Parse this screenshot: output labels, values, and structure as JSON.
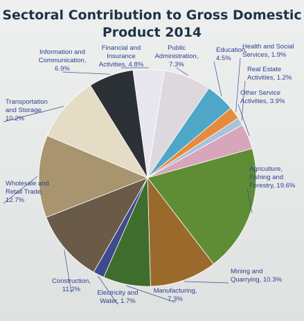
{
  "chart_data": {
    "type": "pie",
    "title_line1": "Sectoral Contribution to Gross Domestic",
    "title_line2": "Product 2014",
    "unit": "%",
    "slices": [
      {
        "label": "Public Administration, 7.3%",
        "value": 7.3,
        "color": "#ddd7de"
      },
      {
        "label": "Education, 4.5%",
        "value": 4.5,
        "color": "#4ea7c6"
      },
      {
        "label": "Health and Social Services, 1.9%",
        "value": 1.9,
        "color": "#e88a3c"
      },
      {
        "label": "Real Estate Activities, 1.2%",
        "value": 1.2,
        "color": "#a9c1d9"
      },
      {
        "label": "Other Service Activities, 3.9%",
        "value": 3.9,
        "color": "#d7a6bb"
      },
      {
        "label": "Agriculture, Fishing and Forestry, 19.6%",
        "value": 19.6,
        "color": "#5f8d35"
      },
      {
        "label": "Mining and Quarrying, 10.3%",
        "value": 10.3,
        "color": "#9a6a2d"
      },
      {
        "label": "Manufacturing, 7.3%",
        "value": 7.3,
        "color": "#3e6d2e"
      },
      {
        "label": "Electricity and Water, 1.7%",
        "value": 1.7,
        "color": "#3e4a8c"
      },
      {
        "label": "Construction, 11.2%",
        "value": 11.2,
        "color": "#6a5a48"
      },
      {
        "label": "Wholesale and Retail Trade, 12.7%",
        "value": 12.7,
        "color": "#a8946f"
      },
      {
        "label": "Transportation and Storage, 10.2%",
        "value": 10.2,
        "color": "#e5dcc6"
      },
      {
        "label": "Information and Communication, 6.9%",
        "value": 6.9,
        "color": "#2c3136"
      },
      {
        "label": "Financial and Insurance Activities, 4.8%",
        "value": 4.8,
        "color": "#e8e6ee"
      }
    ]
  }
}
